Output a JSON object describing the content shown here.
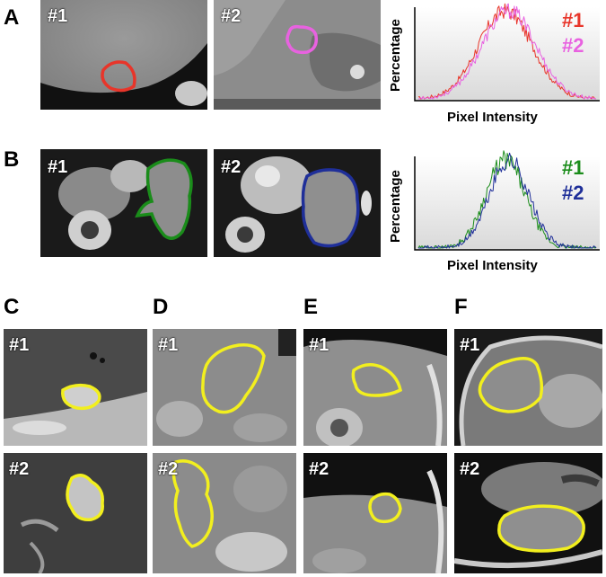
{
  "figure": {
    "panel_labels": [
      "A",
      "B",
      "C",
      "D",
      "E",
      "F"
    ],
    "case_tags": [
      "#1",
      "#2"
    ]
  },
  "chart_data": [
    {
      "type": "line",
      "panel": "A",
      "xlabel": "Pixel Intensity",
      "ylabel": "Percentage",
      "legend_position": "top-right",
      "series": [
        {
          "name": "#1",
          "color": "#e8352a"
        },
        {
          "name": "#2",
          "color": "#e862e0"
        }
      ]
    },
    {
      "type": "line",
      "panel": "B",
      "xlabel": "Pixel Intensity",
      "ylabel": "Percentage",
      "legend_position": "top-right",
      "series": [
        {
          "name": "#1",
          "color": "#1a8c1a"
        },
        {
          "name": "#2",
          "color": "#1f2f99"
        }
      ]
    }
  ],
  "colors": {
    "contour_A1": "#e8352a",
    "contour_A2": "#e862e0",
    "contour_B1": "#1a8c1a",
    "contour_B2": "#1f2f99",
    "contour_yellow": "#f2ef1e"
  }
}
